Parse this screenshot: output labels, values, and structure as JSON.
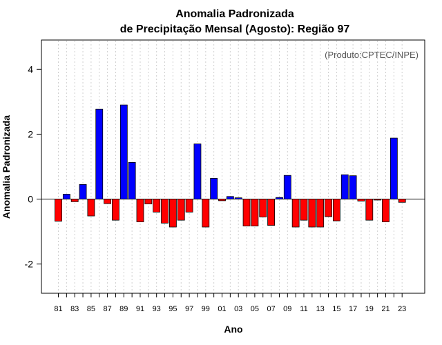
{
  "chart_data": {
    "type": "bar",
    "title_line1": "Anomalia Padronizada",
    "title_line2": "de Precipitação Mensal (Agosto): Região 97",
    "xlabel": "Ano",
    "ylabel": "Anomalia Padronizada",
    "credit": "(Produto:CPTEC/INPE)",
    "ylim": [
      -2.9,
      4.9
    ],
    "yticks": [
      -2,
      0,
      2,
      4
    ],
    "ytick_labels": [
      "-2",
      "0",
      "2",
      "4"
    ],
    "grid": "vertical-dotted",
    "categories": [
      "81",
      "82",
      "83",
      "84",
      "85",
      "86",
      "87",
      "88",
      "89",
      "90",
      "91",
      "92",
      "93",
      "94",
      "95",
      "96",
      "97",
      "98",
      "99",
      "00",
      "01",
      "02",
      "03",
      "04",
      "05",
      "06",
      "07",
      "08",
      "09",
      "10",
      "11",
      "12",
      "13",
      "14",
      "15",
      "16",
      "17",
      "18",
      "19",
      "20",
      "21",
      "22",
      "23"
    ],
    "xtick_labels": [
      "81",
      "83",
      "85",
      "87",
      "89",
      "91",
      "93",
      "95",
      "97",
      "99",
      "01",
      "03",
      "05",
      "07",
      "09",
      "11",
      "13",
      "15",
      "17",
      "19",
      "21",
      "23"
    ],
    "values": [
      -0.68,
      0.15,
      -0.08,
      0.45,
      -0.52,
      2.77,
      -0.14,
      -0.65,
      2.9,
      1.13,
      -0.7,
      -0.15,
      -0.4,
      -0.74,
      -0.86,
      -0.65,
      -0.4,
      1.7,
      -0.86,
      0.64,
      -0.05,
      0.08,
      0.04,
      -0.83,
      -0.83,
      -0.55,
      -0.81,
      0.05,
      0.73,
      -0.86,
      -0.65,
      -0.86,
      -0.86,
      -0.54,
      -0.67,
      0.75,
      0.72,
      -0.06,
      -0.65,
      -0.03,
      -0.7,
      1.88,
      -0.1
    ],
    "colors": {
      "positive": "#0000ff",
      "negative": "#ff0000",
      "outline": "#000000"
    }
  }
}
